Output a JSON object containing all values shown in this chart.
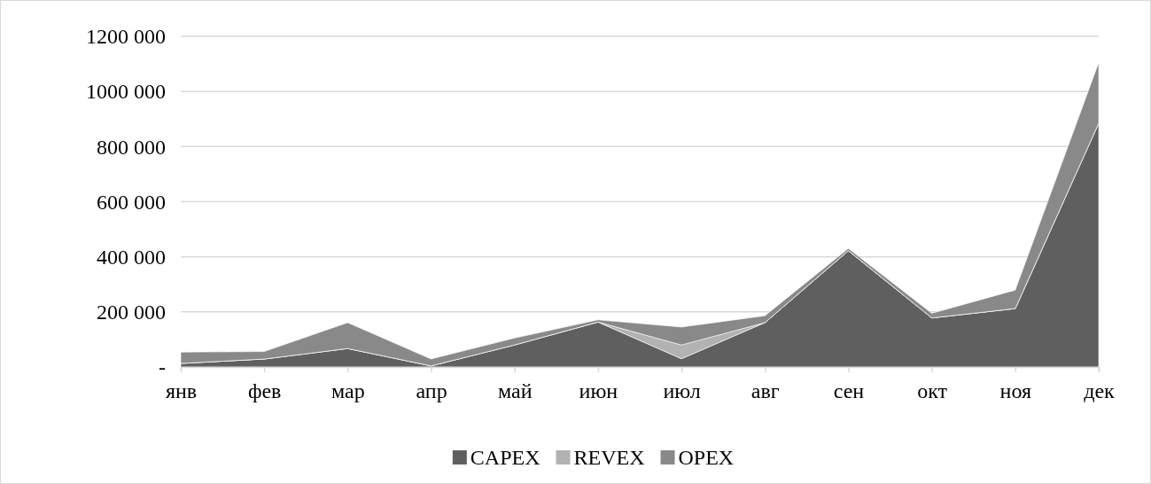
{
  "chart_data": {
    "type": "area",
    "stacked": true,
    "categories": [
      "янв",
      "фев",
      "мар",
      "апр",
      "май",
      "июн",
      "июл",
      "авг",
      "сен",
      "окт",
      "ноя",
      "дек"
    ],
    "series": [
      {
        "name": "CAPEX",
        "color": "#5f5f5f",
        "values": [
          13000,
          29000,
          67000,
          4000,
          80000,
          163000,
          30000,
          161000,
          422000,
          178000,
          212000,
          885000
        ]
      },
      {
        "name": "REVEX",
        "color": "#b2b2b2",
        "values": [
          0,
          0,
          0,
          0,
          0,
          0,
          50000,
          0,
          0,
          0,
          0,
          0
        ]
      },
      {
        "name": "OPEX",
        "color": "#898989",
        "values": [
          41000,
          27000,
          94000,
          25000,
          25000,
          8000,
          65000,
          25000,
          8000,
          17000,
          67000,
          220000
        ]
      }
    ],
    "ylim": [
      0,
      1200000
    ],
    "yticks": [
      {
        "value": 0,
        "label": "-"
      },
      {
        "value": 200000,
        "label": "200 000"
      },
      {
        "value": 400000,
        "label": "400 000"
      },
      {
        "value": 600000,
        "label": "600 000"
      },
      {
        "value": 800000,
        "label": "800 000"
      },
      {
        "value": 1000000,
        "label": "1000 000"
      },
      {
        "value": 1200000,
        "label": "1200 000"
      }
    ],
    "grid": "y",
    "legend": "bottom"
  }
}
